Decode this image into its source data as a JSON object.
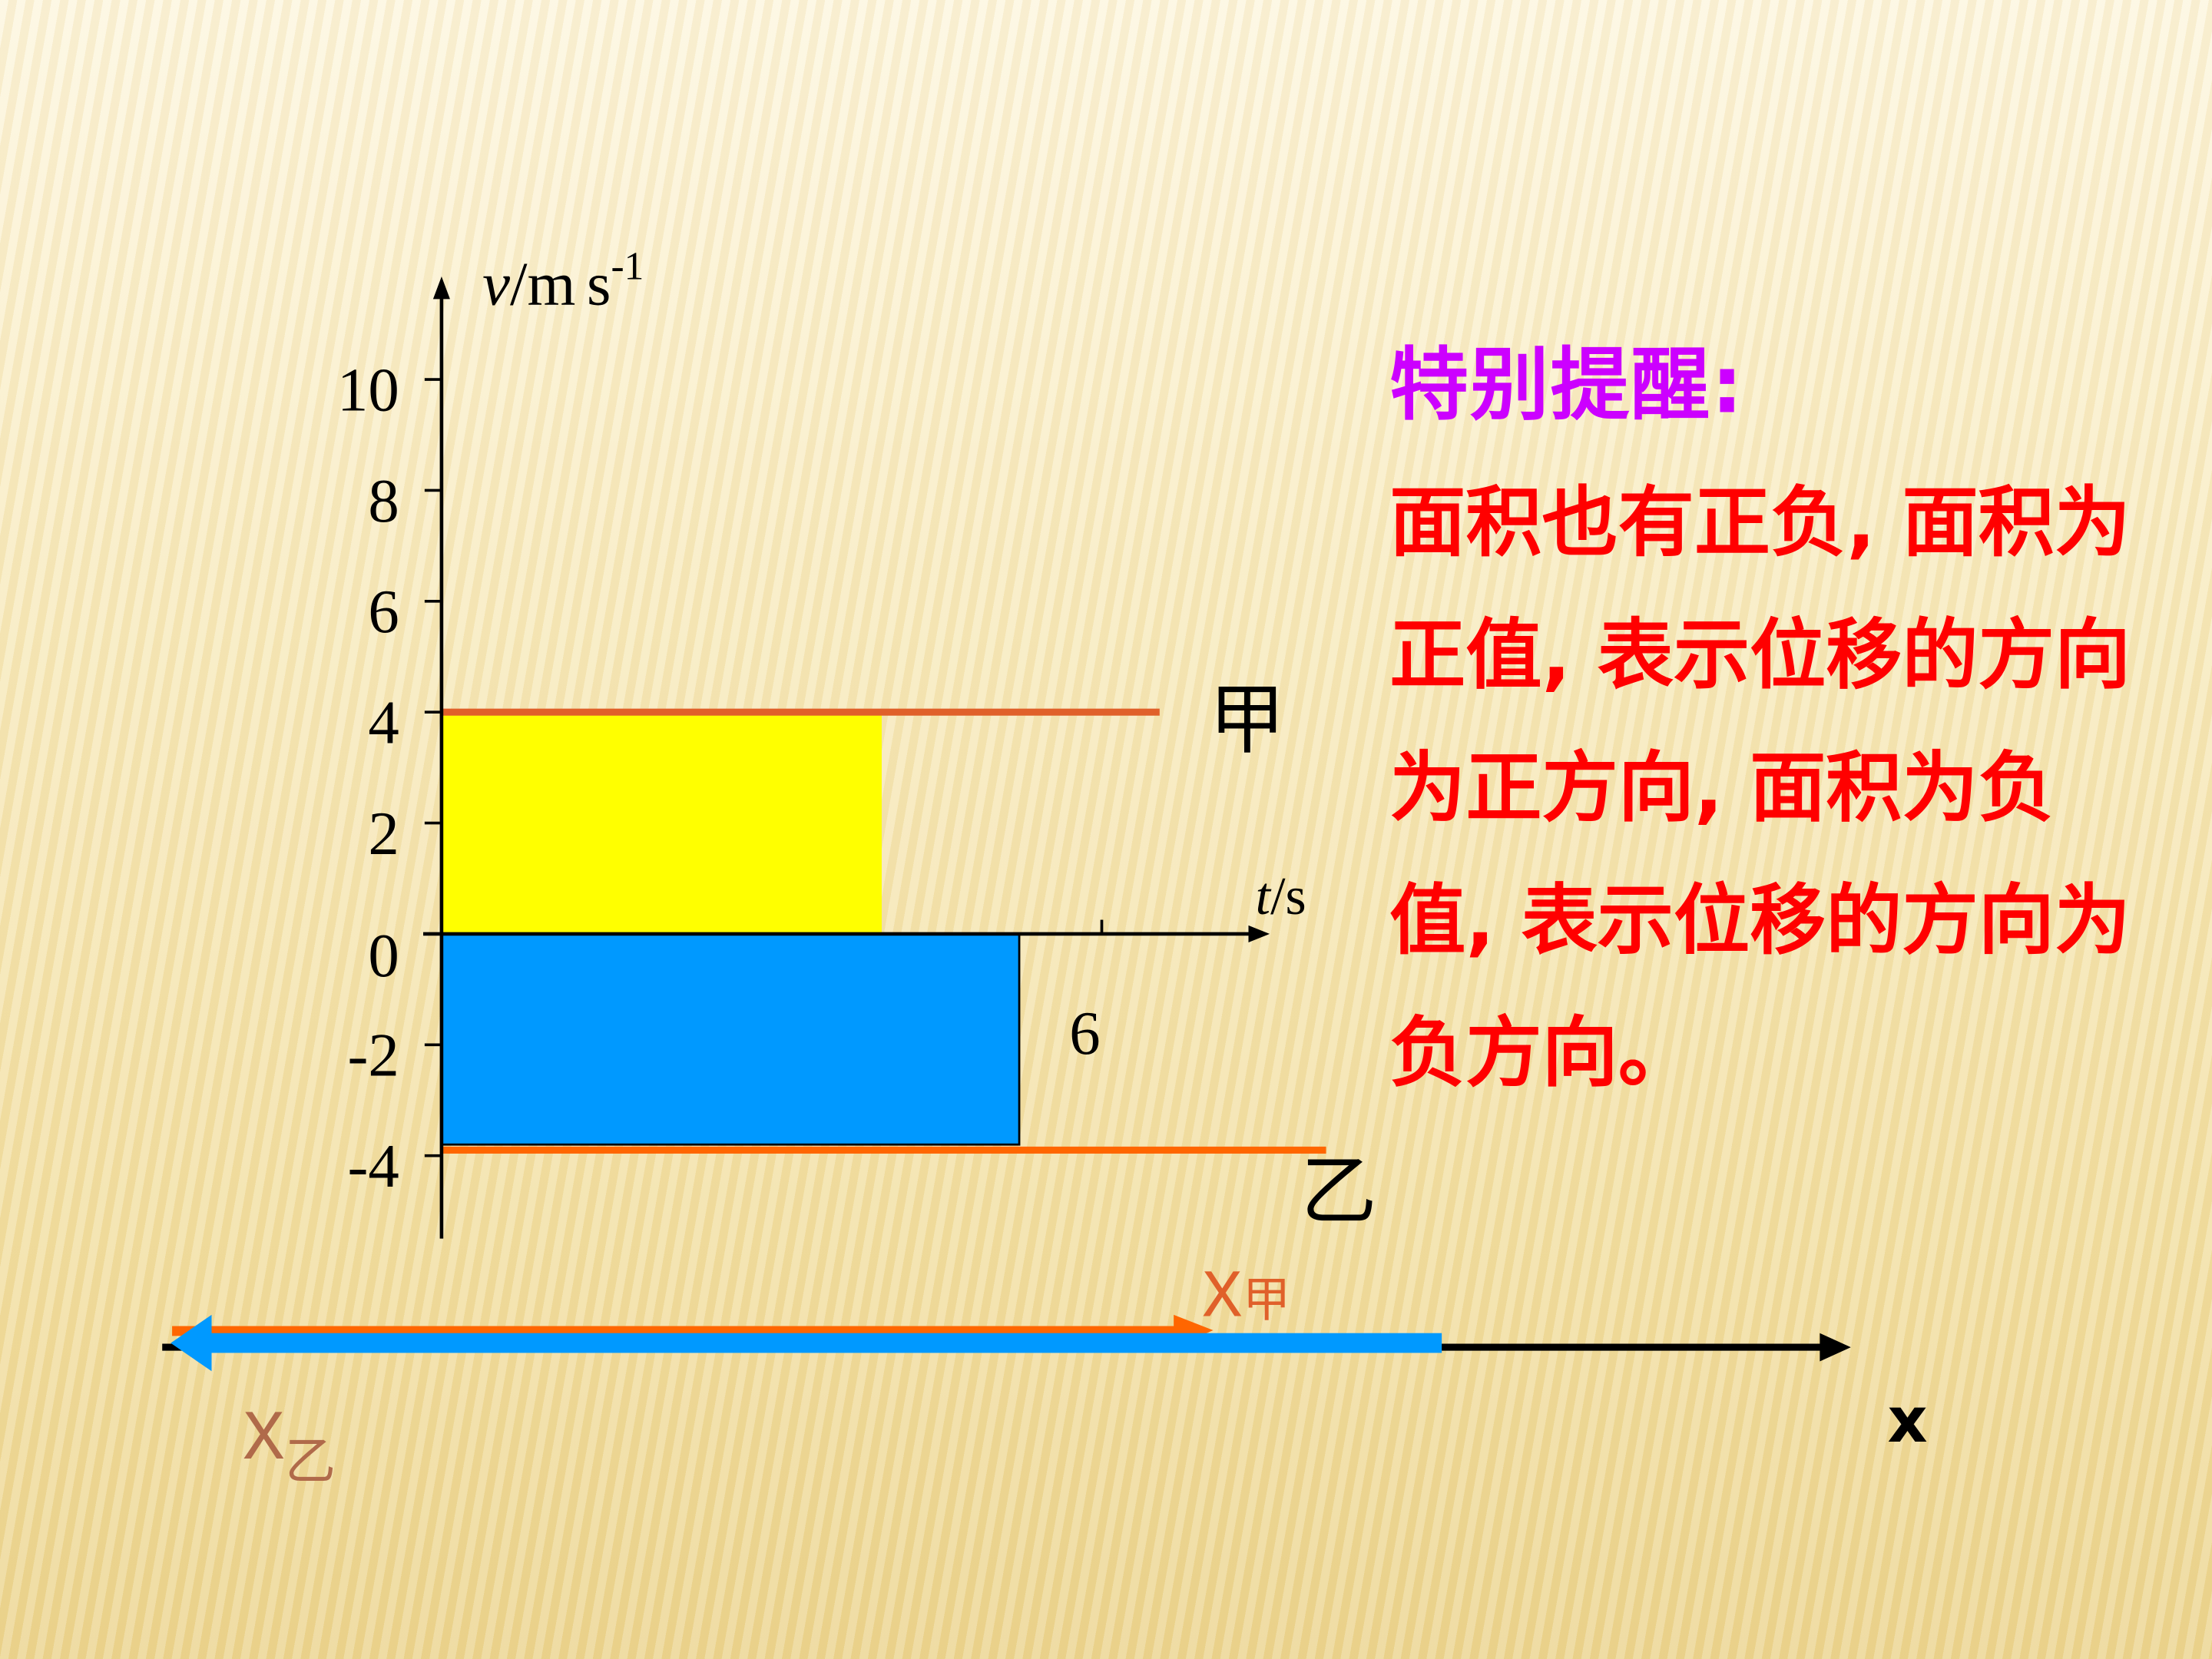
{
  "chart_data": {
    "type": "line",
    "ylabel": "v/m·s-1",
    "ylabel_parts": {
      "var": "v",
      "unit": "/m",
      "s": "s",
      "exp": "-1"
    },
    "xlabel_parts": {
      "var": "t",
      "unit": "/s"
    },
    "y_ticks": [
      "10",
      "8",
      "6",
      "4",
      "2",
      "0",
      "-2",
      "-4"
    ],
    "y_tick_values": [
      10,
      8,
      6,
      4,
      2,
      0,
      -2,
      -4
    ],
    "x_tick_values": [
      6
    ],
    "x_tick_labels": [
      "6"
    ],
    "ylim": [
      -5.5,
      12
    ],
    "xlim": [
      0,
      7.5
    ],
    "series": [
      {
        "name": "甲",
        "x": [
          0,
          6.5
        ],
        "y": [
          4,
          4
        ],
        "color": "#e0602a"
      },
      {
        "name": "乙",
        "x": [
          0,
          8
        ],
        "y": [
          -3.9,
          -3.9
        ],
        "color": "#ff6600"
      }
    ],
    "areas": [
      {
        "x": [
          0,
          4
        ],
        "y": [
          0,
          4
        ],
        "color": "#ffff00"
      },
      {
        "x": [
          0,
          5.25
        ],
        "y": [
          -3.8,
          0
        ],
        "color": "#0099ff"
      }
    ]
  },
  "displacement": {
    "axis_label": "x",
    "jia_label": "X",
    "jia_sub": "甲",
    "yi_label": "X",
    "yi_sub": "乙",
    "jia_color": "#ff6600",
    "yi_color": "#0099ff"
  },
  "note": {
    "title": "特别提醒:",
    "body": "面积也有正负, 面积为正值, 表示位移的方向为正方向, 面积为负值, 表示位移的方向为负方向。",
    "title_color": "#cc00ff",
    "body_color": "#ff0000"
  }
}
